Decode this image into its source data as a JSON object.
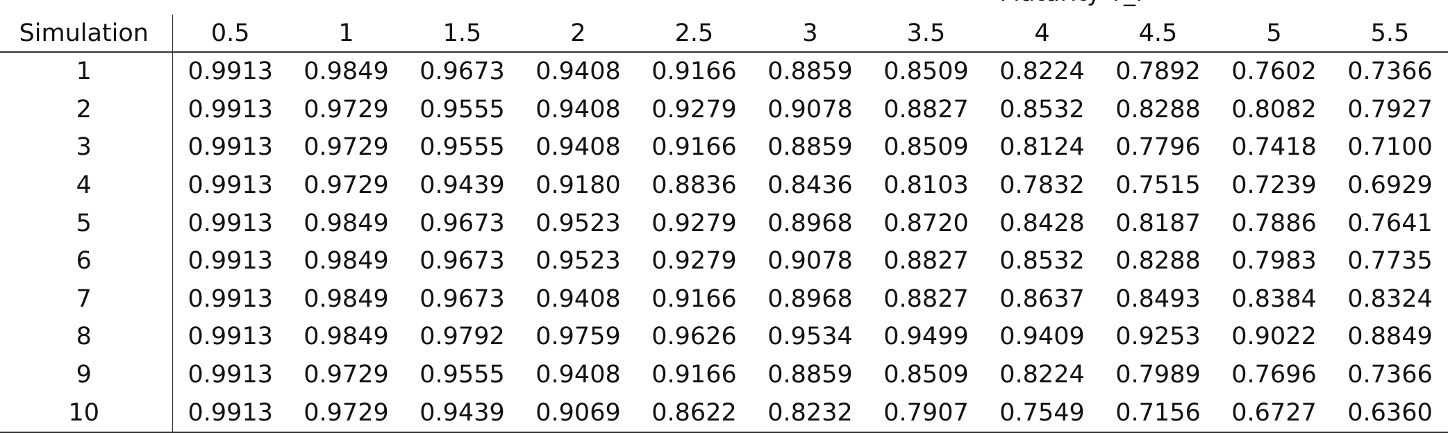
{
  "table": {
    "group_header": "Maturity T_i",
    "row_header_label": "Simulation",
    "columns": [
      "0.5",
      "1",
      "1.5",
      "2",
      "2.5",
      "3",
      "3.5",
      "4",
      "4.5",
      "5",
      "5.5"
    ],
    "rows": [
      {
        "simulation": "1",
        "values": [
          "0.9913",
          "0.9849",
          "0.9673",
          "0.9408",
          "0.9166",
          "0.8859",
          "0.8509",
          "0.8224",
          "0.7892",
          "0.7602",
          "0.7366"
        ]
      },
      {
        "simulation": "2",
        "values": [
          "0.9913",
          "0.9729",
          "0.9555",
          "0.9408",
          "0.9279",
          "0.9078",
          "0.8827",
          "0.8532",
          "0.8288",
          "0.8082",
          "0.7927"
        ]
      },
      {
        "simulation": "3",
        "values": [
          "0.9913",
          "0.9729",
          "0.9555",
          "0.9408",
          "0.9166",
          "0.8859",
          "0.8509",
          "0.8124",
          "0.7796",
          "0.7418",
          "0.7100"
        ]
      },
      {
        "simulation": "4",
        "values": [
          "0.9913",
          "0.9729",
          "0.9439",
          "0.9180",
          "0.8836",
          "0.8436",
          "0.8103",
          "0.7832",
          "0.7515",
          "0.7239",
          "0.6929"
        ]
      },
      {
        "simulation": "5",
        "values": [
          "0.9913",
          "0.9849",
          "0.9673",
          "0.9523",
          "0.9279",
          "0.8968",
          "0.8720",
          "0.8428",
          "0.8187",
          "0.7886",
          "0.7641"
        ]
      },
      {
        "simulation": "6",
        "values": [
          "0.9913",
          "0.9849",
          "0.9673",
          "0.9523",
          "0.9279",
          "0.9078",
          "0.8827",
          "0.8532",
          "0.8288",
          "0.7983",
          "0.7735"
        ]
      },
      {
        "simulation": "7",
        "values": [
          "0.9913",
          "0.9849",
          "0.9673",
          "0.9408",
          "0.9166",
          "0.8968",
          "0.8827",
          "0.8637",
          "0.8493",
          "0.8384",
          "0.8324"
        ]
      },
      {
        "simulation": "8",
        "values": [
          "0.9913",
          "0.9849",
          "0.9792",
          "0.9759",
          "0.9626",
          "0.9534",
          "0.9499",
          "0.9409",
          "0.9253",
          "0.9022",
          "0.8849"
        ]
      },
      {
        "simulation": "9",
        "values": [
          "0.9913",
          "0.9729",
          "0.9555",
          "0.9408",
          "0.9166",
          "0.8859",
          "0.8509",
          "0.8224",
          "0.7989",
          "0.7696",
          "0.7366"
        ]
      },
      {
        "simulation": "10",
        "values": [
          "0.9913",
          "0.9729",
          "0.9439",
          "0.9069",
          "0.8622",
          "0.8232",
          "0.7907",
          "0.7549",
          "0.7156",
          "0.6727",
          "0.6360"
        ]
      }
    ]
  }
}
